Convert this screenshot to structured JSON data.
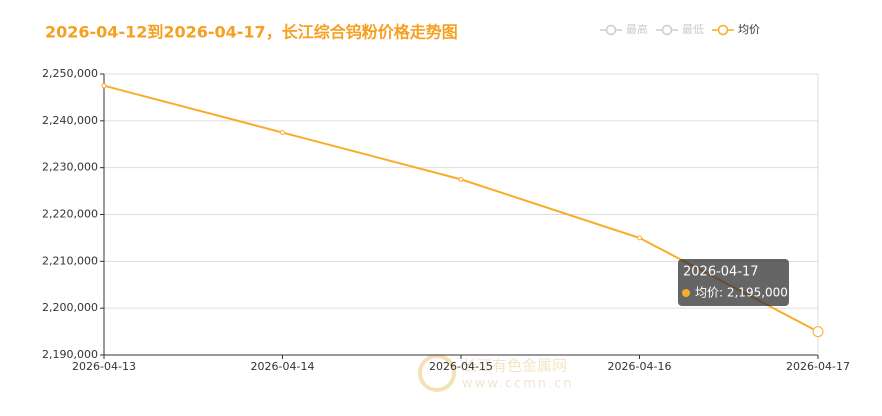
{
  "chart_data": {
    "type": "line",
    "title": "2026-04-12到2026-04-17，长江综合钨粉价格走势图",
    "legend": [
      {
        "name": "最高",
        "active": false
      },
      {
        "name": "最低",
        "active": false
      },
      {
        "name": "均价",
        "active": true
      }
    ],
    "categories": [
      "2026-04-13",
      "2026-04-14",
      "2026-04-15",
      "2026-04-16",
      "2026-04-17"
    ],
    "series": [
      {
        "name": "均价",
        "color": "#f8ac2a",
        "values": [
          2247500,
          2237500,
          2227500,
          2215000,
          2195000
        ]
      }
    ],
    "ylim": [
      2190000,
      2250000
    ],
    "yticks": [
      {
        "value": 2190000,
        "label": "2,190,000"
      },
      {
        "value": 2200000,
        "label": "2,200,000"
      },
      {
        "value": 2210000,
        "label": "2,210,000"
      },
      {
        "value": 2220000,
        "label": "2,220,000"
      },
      {
        "value": 2230000,
        "label": "2,230,000"
      },
      {
        "value": 2240000,
        "label": "2,240,000"
      },
      {
        "value": 2250000,
        "label": "2,250,000"
      }
    ],
    "grid": true,
    "tooltip": {
      "title": "2026-04-17",
      "text": "均价: 2,195,000"
    },
    "watermark": {
      "name": "长江有色金属网",
      "url": "www.ccmn.cn"
    }
  }
}
